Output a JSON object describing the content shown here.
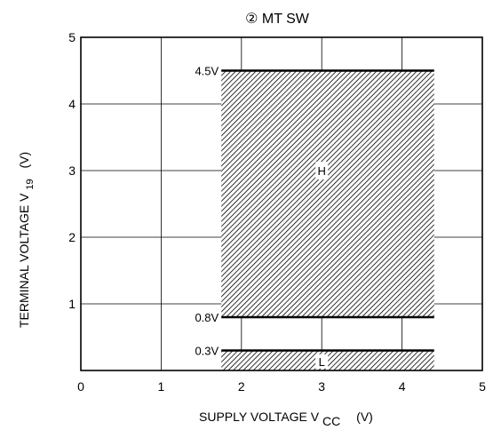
{
  "chart_data": {
    "type": "area",
    "title": "②  MT SW",
    "xlabel": {
      "main": "SUPPLY VOLTAGE  V",
      "sub": "CC",
      "unit": "(V)"
    },
    "ylabel": {
      "main": "TERMINAL VOLTAGE  V",
      "sub": "19",
      "unit": "(V)"
    },
    "xlim": [
      0,
      5
    ],
    "ylim": [
      0,
      5
    ],
    "xticks": [
      0,
      1,
      2,
      3,
      4,
      5
    ],
    "yticks": [
      1,
      2,
      3,
      4,
      5
    ],
    "grid": true,
    "regions": [
      {
        "name": "H",
        "x": [
          1.75,
          4.4
        ],
        "y": [
          0.8,
          4.5
        ]
      },
      {
        "name": "L",
        "x": [
          1.75,
          4.4
        ],
        "y": [
          0,
          0.3
        ]
      }
    ],
    "level_lines": [
      {
        "label": "4.5V",
        "y": 4.5
      },
      {
        "label": "0.8V",
        "y": 0.8
      },
      {
        "label": "0.3V",
        "y": 0.3
      }
    ],
    "colors": {
      "hatch": "#000000",
      "grid": "#000000"
    }
  }
}
